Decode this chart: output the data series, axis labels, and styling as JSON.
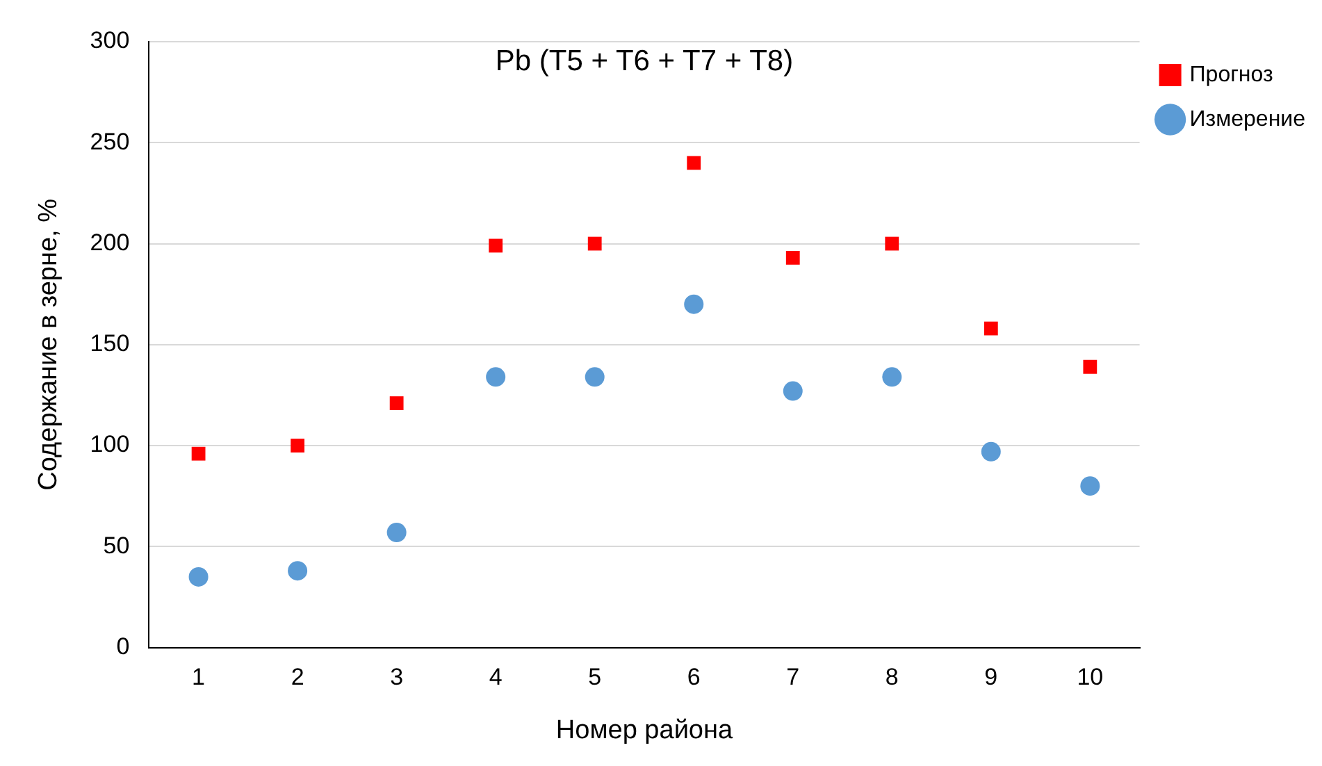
{
  "chart_data": {
    "type": "scatter",
    "title": "Pb (T5 + T6 + T7 + T8)",
    "xlabel": "Номер района",
    "ylabel": "Содержание в зерне, %",
    "categories": [
      "1",
      "2",
      "3",
      "4",
      "5",
      "6",
      "7",
      "8",
      "9",
      "10"
    ],
    "series": [
      {
        "name": "Прогноз",
        "color": "#ff0000",
        "marker": "square",
        "values": [
          96,
          100,
          121,
          199,
          200,
          240,
          193,
          200,
          158,
          139
        ]
      },
      {
        "name": "Измерение",
        "color": "#5b9bd5",
        "marker": "circle",
        "values": [
          35,
          38,
          57,
          134,
          134,
          170,
          127,
          134,
          97,
          80
        ]
      }
    ],
    "ylim": [
      0,
      300
    ],
    "yticks": [
      0,
      50,
      100,
      150,
      200,
      250,
      300
    ],
    "grid": "y",
    "legend": "top right"
  }
}
